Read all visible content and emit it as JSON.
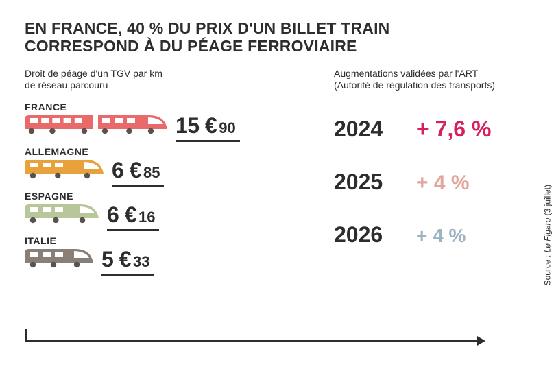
{
  "headline_line1": "EN FRANCE, 40 % DU PRIX D'UN BILLET TRAIN",
  "headline_line2": "CORRESPOND À DU PÉAGE FERROVIAIRE",
  "left": {
    "subhead_line1": "Droit de péage d'un TGV par km",
    "subhead_line2": "de réseau parcouru",
    "countries": [
      {
        "name": "FRANCE",
        "price_int": "15 €",
        "price_dec": "90",
        "color": "#e86a6b",
        "train_width": 208,
        "cars": 2
      },
      {
        "name": "ALLEMAGNE",
        "price_int": "6 €",
        "price_dec": "85",
        "color": "#e9a13b",
        "train_width": 115,
        "cars": 1
      },
      {
        "name": "ESPAGNE",
        "price_int": "6 €",
        "price_dec": "16",
        "color": "#b7c79a",
        "train_width": 108,
        "cars": 1
      },
      {
        "name": "ITALIE",
        "price_int": "5 €",
        "price_dec": "33",
        "color": "#8a7f77",
        "train_width": 100,
        "cars": 1
      }
    ]
  },
  "right": {
    "subhead_line1": "Augmentations validées par l'ART",
    "subhead_line2": "(Autorité de régulation des transports)",
    "increases": [
      {
        "year": "2024",
        "value": "+ 7,6 %",
        "color": "#d81e5b",
        "fontsize": 32
      },
      {
        "year": "2025",
        "value": "+ 4 %",
        "color": "#e3a69d",
        "fontsize": 30
      },
      {
        "year": "2026",
        "value": "+ 4 %",
        "color": "#9db3c2",
        "fontsize": 28
      }
    ]
  },
  "source_prefix": "Source : ",
  "source_name": "Le Figaro",
  "source_suffix": " (3 juillet)",
  "colors": {
    "text": "#2d2d2d",
    "background": "#ffffff"
  }
}
